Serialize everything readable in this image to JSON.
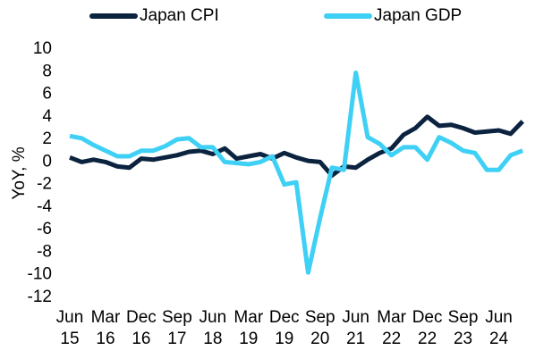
{
  "chart_data": {
    "type": "line",
    "ylabel": "YoY, %",
    "categories": [
      [
        "Jun",
        "15"
      ],
      null,
      null,
      [
        "Mar",
        "16"
      ],
      null,
      null,
      [
        "Dec",
        "16"
      ],
      null,
      null,
      [
        "Sep",
        "17"
      ],
      null,
      null,
      [
        "Jun",
        "18"
      ],
      null,
      null,
      [
        "Mar",
        "19"
      ],
      null,
      null,
      [
        "Dec",
        "19"
      ],
      null,
      null,
      [
        "Sep",
        "20"
      ],
      null,
      null,
      [
        "Jun",
        "21"
      ],
      null,
      null,
      [
        "Mar",
        "22"
      ],
      null,
      null,
      [
        "Dec",
        "22"
      ],
      null,
      null,
      [
        "Sep",
        "23"
      ],
      null,
      null,
      [
        "Jun",
        "24"
      ],
      null,
      null
    ],
    "series": [
      {
        "name": "Japan CPI",
        "color": "#0c2340",
        "values": [
          0.4,
          0.0,
          0.2,
          0.0,
          -0.4,
          -0.5,
          0.3,
          0.2,
          0.4,
          0.6,
          0.9,
          1.0,
          0.7,
          1.2,
          0.3,
          0.5,
          0.7,
          0.3,
          0.8,
          0.4,
          0.1,
          0.0,
          -1.2,
          -0.4,
          -0.5,
          0.2,
          0.8,
          1.2,
          2.4,
          3.0,
          4.0,
          3.2,
          3.3,
          3.0,
          2.6,
          2.7,
          2.8,
          2.5,
          3.6
        ]
      },
      {
        "name": "Japan GDP",
        "color": "#3fd0f5",
        "values": [
          2.3,
          2.1,
          1.5,
          1.0,
          0.5,
          0.5,
          1.0,
          1.0,
          1.4,
          2.0,
          2.1,
          1.3,
          1.3,
          0.0,
          -0.1,
          -0.2,
          0.0,
          0.5,
          -2.0,
          -1.8,
          -9.8,
          -5.0,
          -0.5,
          -0.7,
          7.9,
          2.2,
          1.6,
          0.6,
          1.3,
          1.3,
          0.2,
          2.2,
          1.7,
          1.0,
          0.8,
          -0.7,
          -0.7,
          0.6,
          1.0
        ]
      }
    ],
    "ylim": [
      -12,
      10
    ],
    "yticks": [
      -12,
      -10,
      -8,
      -6,
      -4,
      -2,
      0,
      2,
      4,
      6,
      8,
      10
    ],
    "grid": false,
    "legend": "top"
  }
}
